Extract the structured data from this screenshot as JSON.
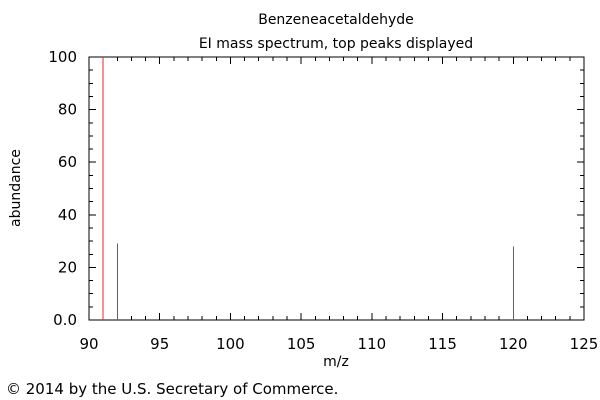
{
  "chart_data": {
    "type": "bar",
    "title": "Benzeneacetaldehyde",
    "subtitle": "EI mass spectrum, top peaks displayed",
    "xlabel": "m/z",
    "ylabel": "abundance",
    "xlim": [
      90,
      125
    ],
    "ylim": [
      0,
      100
    ],
    "x_ticks": [
      "90",
      "95",
      "100",
      "105",
      "110",
      "115",
      "120",
      "125"
    ],
    "y_ticks": [
      "0.0",
      "20",
      "40",
      "60",
      "80",
      "100"
    ],
    "grid": false,
    "series": [
      {
        "color": "#e8262a",
        "points": [
          {
            "x": 91,
            "y": 100
          },
          {
            "x": 92,
            "y": 29
          },
          {
            "x": 120,
            "y": 28
          }
        ]
      }
    ]
  },
  "footer": {
    "copyright": "© 2014 by the U.S. Secretary of Commerce."
  }
}
